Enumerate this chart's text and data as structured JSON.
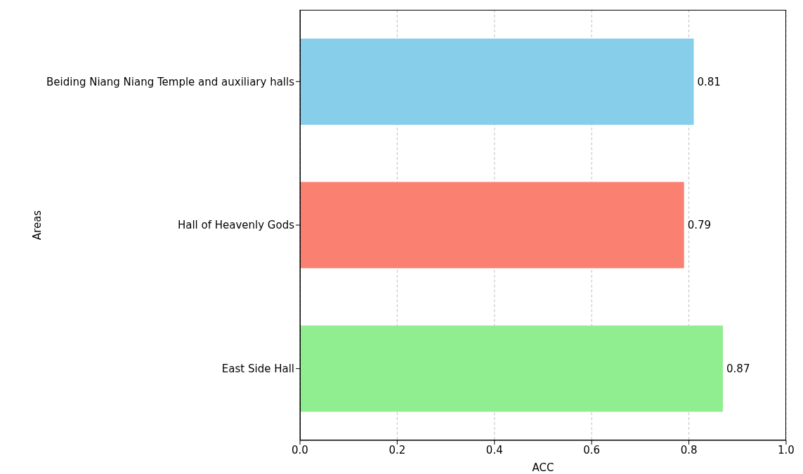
{
  "chart_data": {
    "type": "bar",
    "orientation": "horizontal",
    "xlabel": "ACC",
    "ylabel": "Areas",
    "categories": [
      "Beiding Niang Niang Temple and auxiliary halls",
      "Hall of Heavenly Gods",
      "East Side Hall"
    ],
    "values": [
      0.81,
      0.79,
      0.87
    ],
    "colors": [
      "#87ceeb",
      "#fa8072",
      "#90ee90"
    ],
    "xlim": [
      0,
      1
    ],
    "xticks": [
      {
        "value": 0,
        "label": "0.0"
      },
      {
        "value": 0.2,
        "label": "0.2"
      },
      {
        "value": 0.4,
        "label": "0.4"
      },
      {
        "value": 0.6,
        "label": "0.6"
      },
      {
        "value": 0.8,
        "label": "0.8"
      },
      {
        "value": 1,
        "label": "1.0"
      }
    ],
    "grid": "x",
    "data_labels": true
  }
}
